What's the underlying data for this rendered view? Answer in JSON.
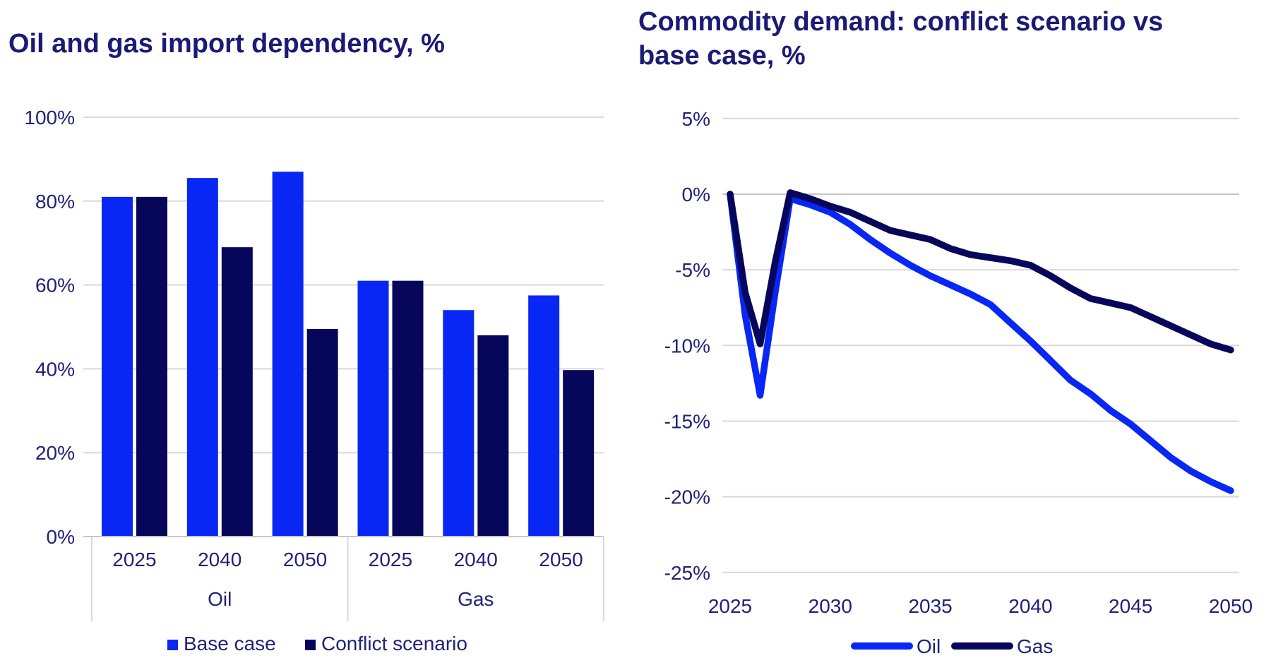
{
  "theme": {
    "background": "#ffffff",
    "title_color": "#1b1b75",
    "label_color": "#212178",
    "grid_color": "#d9d9d9",
    "axis_color": "#c6c6c6",
    "oil_blue": "#0827f5",
    "navy": "#06065a"
  },
  "chart_data": [
    {
      "type": "bar",
      "title": "Oil and gas import dependency, %",
      "ylim": [
        0,
        100
      ],
      "yticks": [
        "0%",
        "20%",
        "40%",
        "60%",
        "80%",
        "100%"
      ],
      "grid": "horizontal",
      "legend_position": "bottom",
      "group_labels": [
        "Oil",
        "Gas"
      ],
      "categories": [
        "2025",
        "2040",
        "2050",
        "2025",
        "2040",
        "2050"
      ],
      "series": [
        {
          "name": "Base case",
          "color": "#0827f5",
          "values": [
            81,
            85.5,
            87,
            61,
            54,
            57.5
          ]
        },
        {
          "name": "Conflict scenario",
          "color": "#06065a",
          "values": [
            81,
            69,
            49.5,
            61,
            48,
            39.7
          ]
        }
      ]
    },
    {
      "type": "line",
      "title": "Commodity demand: conflict scenario vs base case, %",
      "ylim": [
        -25,
        5
      ],
      "yticks": [
        "5%",
        "0%",
        "-5%",
        "-10%",
        "-15%",
        "-20%",
        "-25%"
      ],
      "xticks": [
        2025,
        2030,
        2035,
        2040,
        2045,
        2050
      ],
      "grid": "horizontal",
      "legend_position": "bottom",
      "x": [
        2025,
        2025.75,
        2026.5,
        2027.25,
        2028,
        2029,
        2030,
        2031,
        2032,
        2033,
        2034,
        2035,
        2036,
        2037,
        2038,
        2039,
        2040,
        2041,
        2042,
        2043,
        2044,
        2045,
        2046,
        2047,
        2048,
        2049,
        2050
      ],
      "series": [
        {
          "name": "Oil",
          "color": "#0827f5",
          "values": [
            0,
            -8,
            -13.3,
            -6.5,
            -0.3,
            -0.7,
            -1.2,
            -2.0,
            -3.0,
            -3.9,
            -4.7,
            -5.4,
            -6.0,
            -6.6,
            -7.3,
            -8.5,
            -9.7,
            -11.0,
            -12.3,
            -13.2,
            -14.3,
            -15.2,
            -16.3,
            -17.4,
            -18.3,
            -19.0,
            -19.6
          ]
        },
        {
          "name": "Gas",
          "color": "#06065a",
          "values": [
            0,
            -6.5,
            -9.9,
            -4.5,
            0.1,
            -0.3,
            -0.8,
            -1.2,
            -1.8,
            -2.4,
            -2.7,
            -3.0,
            -3.6,
            -4.0,
            -4.2,
            -4.4,
            -4.7,
            -5.4,
            -6.2,
            -6.9,
            -7.2,
            -7.5,
            -8.1,
            -8.7,
            -9.3,
            -9.9,
            -10.3
          ]
        }
      ]
    }
  ]
}
